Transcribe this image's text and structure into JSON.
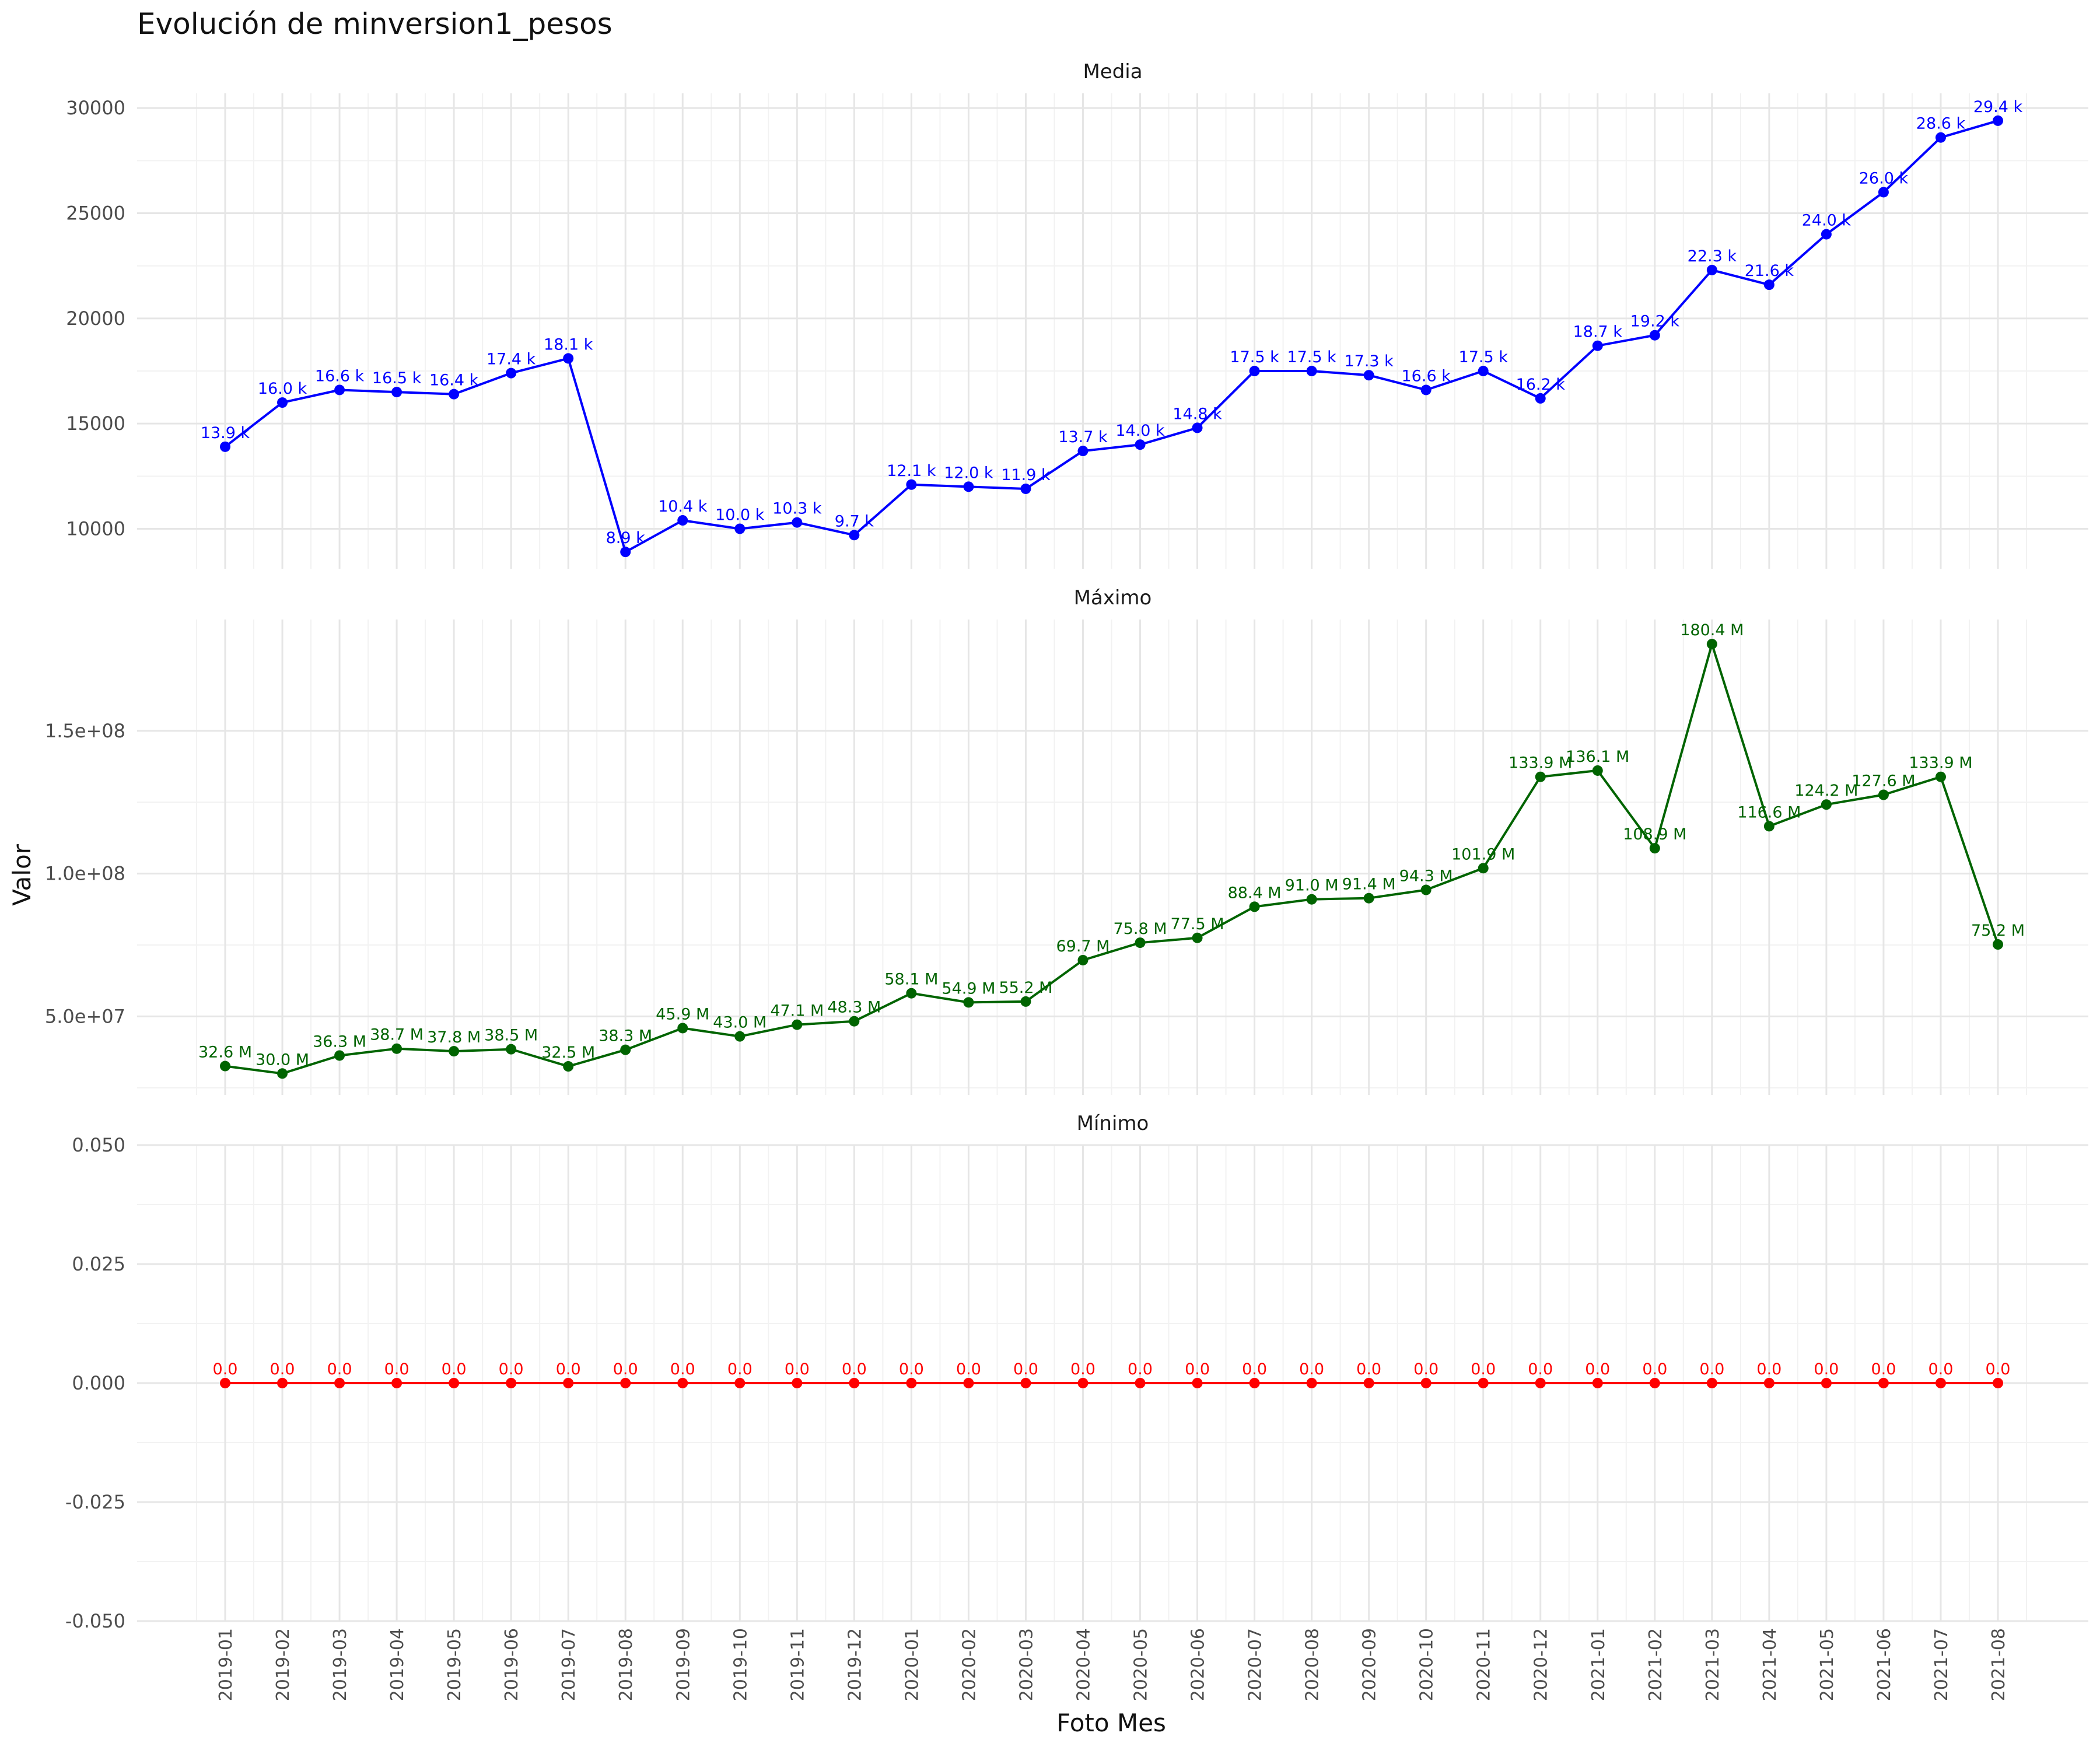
{
  "title": "Evolución de minversion1_pesos",
  "xlabel": "Foto Mes",
  "ylabel": "Valor",
  "chart_data": {
    "type": "line",
    "title": "Evolución de minversion1_pesos",
    "xlabel": "Foto Mes",
    "ylabel": "Valor",
    "x": [
      "2019-01",
      "2019-02",
      "2019-03",
      "2019-04",
      "2019-05",
      "2019-06",
      "2019-07",
      "2019-08",
      "2019-09",
      "2019-10",
      "2019-11",
      "2019-12",
      "2020-01",
      "2020-02",
      "2020-03",
      "2020-04",
      "2020-05",
      "2020-06",
      "2020-07",
      "2020-08",
      "2020-09",
      "2020-10",
      "2020-11",
      "2020-12",
      "2021-01",
      "2021-02",
      "2021-03",
      "2021-04",
      "2021-05",
      "2021-06",
      "2021-07",
      "2021-08"
    ],
    "grid": true,
    "panels": [
      {
        "name": "Media",
        "color": "#0000ff",
        "ylim": [
          8100,
          30700
        ],
        "yticks": [
          10000,
          15000,
          20000,
          25000,
          30000
        ],
        "ytick_labels": [
          "10000",
          "15000",
          "20000",
          "25000",
          "30000"
        ],
        "values": [
          13900,
          16000,
          16600,
          16500,
          16400,
          17400,
          18100,
          8900,
          10400,
          10000,
          10300,
          9700,
          12100,
          12000,
          11900,
          13700,
          14000,
          14800,
          17500,
          17500,
          17300,
          16600,
          17500,
          16200,
          18700,
          19200,
          22300,
          21600,
          24000,
          26000,
          28600,
          29400
        ],
        "labels": [
          "13.9 k",
          "16.0 k",
          "16.6 k",
          "16.5 k",
          "16.4 k",
          "17.4 k",
          "18.1 k",
          "8.9 k",
          "10.4 k",
          "10.0 k",
          "10.3 k",
          "9.7 k",
          "12.1 k",
          "12.0 k",
          "11.9 k",
          "13.7 k",
          "14.0 k",
          "14.8 k",
          "17.5 k",
          "17.5 k",
          "17.3 k",
          "16.6 k",
          "17.5 k",
          "16.2 k",
          "18.7 k",
          "19.2 k",
          "22.3 k",
          "21.6 k",
          "24.0 k",
          "26.0 k",
          "28.6 k",
          "29.4 k"
        ]
      },
      {
        "name": "Máximo",
        "color": "#006400",
        "ylim": [
          22500000,
          189000000
        ],
        "yticks": [
          50000000,
          100000000,
          150000000
        ],
        "ytick_labels": [
          "5.0e+07",
          "1.0e+08",
          "1.5e+08"
        ],
        "values": [
          32600000,
          30000000,
          36300000,
          38700000,
          37800000,
          38500000,
          32500000,
          38300000,
          45900000,
          43000000,
          47100000,
          48300000,
          58100000,
          54900000,
          55200000,
          69700000,
          75800000,
          77500000,
          88400000,
          91000000,
          91400000,
          94300000,
          101900000,
          133900000,
          136100000,
          108900000,
          180400000,
          116600000,
          124200000,
          127600000,
          133900000,
          75200000
        ],
        "labels": [
          "32.6 M",
          "30.0 M",
          "36.3 M",
          "38.7 M",
          "37.8 M",
          "38.5 M",
          "32.5 M",
          "38.3 M",
          "45.9 M",
          "43.0 M",
          "47.1 M",
          "48.3 M",
          "58.1 M",
          "54.9 M",
          "55.2 M",
          "69.7 M",
          "75.8 M",
          "77.5 M",
          "88.4 M",
          "91.0 M",
          "91.4 M",
          "94.3 M",
          "101.9 M",
          "133.9 M",
          "136.1 M",
          "108.9 M",
          "180.4 M",
          "116.6 M",
          "124.2 M",
          "127.6 M",
          "133.9 M",
          "75.2 M"
        ]
      },
      {
        "name": "Mínimo",
        "color": "#ff0000",
        "ylim": [
          -0.05,
          0.05
        ],
        "yticks": [
          -0.05,
          -0.025,
          0,
          0.025,
          0.05
        ],
        "ytick_labels": [
          "-0.050",
          "-0.025",
          "0.000",
          "0.025",
          "0.050"
        ],
        "values": [
          0,
          0,
          0,
          0,
          0,
          0,
          0,
          0,
          0,
          0,
          0,
          0,
          0,
          0,
          0,
          0,
          0,
          0,
          0,
          0,
          0,
          0,
          0,
          0,
          0,
          0,
          0,
          0,
          0,
          0,
          0,
          0
        ],
        "labels": [
          "0.0",
          "0.0",
          "0.0",
          "0.0",
          "0.0",
          "0.0",
          "0.0",
          "0.0",
          "0.0",
          "0.0",
          "0.0",
          "0.0",
          "0.0",
          "0.0",
          "0.0",
          "0.0",
          "0.0",
          "0.0",
          "0.0",
          "0.0",
          "0.0",
          "0.0",
          "0.0",
          "0.0",
          "0.0",
          "0.0",
          "0.0",
          "0.0",
          "0.0",
          "0.0",
          "0.0",
          "0.0"
        ]
      }
    ]
  }
}
